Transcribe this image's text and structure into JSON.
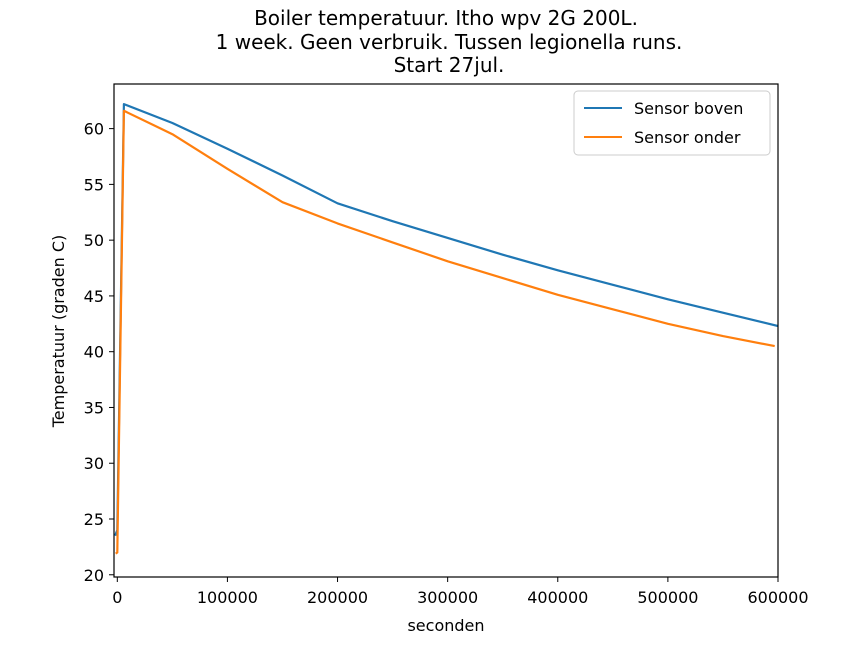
{
  "chart_data": {
    "type": "line",
    "title_lines": [
      "Boiler temperatuur. Itho wpv 2G 200L.",
      "1 week. Geen verbruik. Tussen legionella runs.",
      "Start 27jul."
    ],
    "xlabel": "seconden",
    "ylabel": "Temperatuur (graden C)",
    "xlim": [
      -3000,
      600000
    ],
    "ylim": [
      19.8,
      64
    ],
    "xticks": [
      0,
      100000,
      200000,
      300000,
      400000,
      500000,
      600000
    ],
    "xtick_labels": [
      "0",
      "100000",
      "200000",
      "300000",
      "400000",
      "500000",
      "600000"
    ],
    "yticks": [
      20,
      25,
      30,
      35,
      40,
      45,
      50,
      55,
      60
    ],
    "ytick_labels": [
      "20",
      "25",
      "30",
      "35",
      "40",
      "45",
      "50",
      "55",
      "60"
    ],
    "grid": false,
    "legend_position": "top-right",
    "series": [
      {
        "name": "Sensor boven",
        "color": "#1f77b4",
        "x": [
          -2000,
          0,
          6000,
          50000,
          100000,
          150000,
          200000,
          250000,
          300000,
          350000,
          400000,
          450000,
          500000,
          550000,
          600000
        ],
        "y": [
          23.5,
          24,
          62.2,
          60.5,
          58.2,
          55.8,
          53.3,
          51.7,
          50.2,
          48.7,
          47.3,
          46.0,
          44.7,
          43.5,
          42.3
        ]
      },
      {
        "name": "Sensor onder",
        "color": "#ff7f0e",
        "x": [
          -1500,
          0,
          6000,
          50000,
          100000,
          150000,
          200000,
          250000,
          300000,
          350000,
          400000,
          450000,
          500000,
          550000,
          597000
        ],
        "y": [
          21.9,
          22,
          61.6,
          59.5,
          56.4,
          53.4,
          51.5,
          49.8,
          48.1,
          46.6,
          45.1,
          43.8,
          42.5,
          41.4,
          40.5
        ]
      }
    ]
  }
}
